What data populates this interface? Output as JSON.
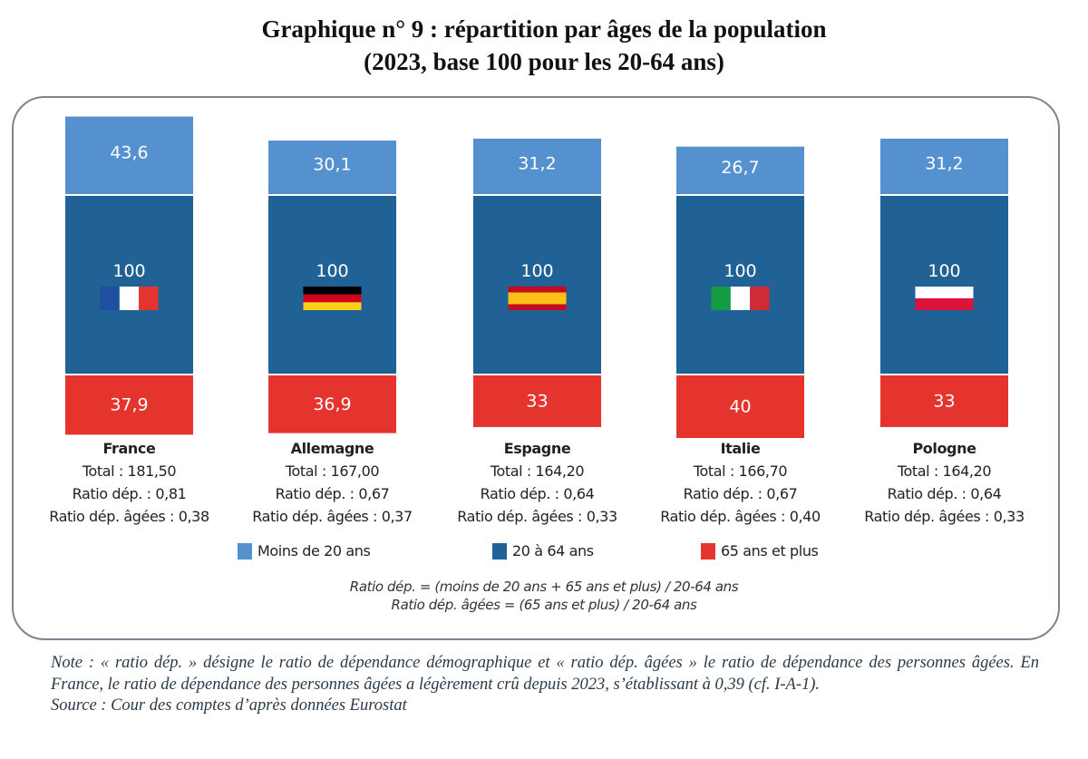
{
  "title": {
    "line1": "Graphique n° 9 : répartition par âges de la population",
    "line2": "(2023, base 100 pour les 20-64 ans)"
  },
  "colors": {
    "moins20": "#5591cf",
    "age20_64": "#216296",
    "plus65": "#e5332d",
    "frame": "#7d8391"
  },
  "chart_data": {
    "type": "bar",
    "stacked": true,
    "title": "Graphique n° 9 : répartition par âges de la population (2023, base 100 pour les 20-64 ans)",
    "xlabel": "",
    "ylabel": "",
    "categories": [
      "France",
      "Allemagne",
      "Espagne",
      "Italie",
      "Pologne"
    ],
    "series": [
      {
        "name": "65 ans et plus",
        "values": [
          37.9,
          36.9,
          33,
          40,
          33
        ],
        "labels": [
          "37,9",
          "36,9",
          "33",
          "40",
          "33"
        ]
      },
      {
        "name": "20 à 64 ans",
        "values": [
          100,
          100,
          100,
          100,
          100
        ],
        "labels": [
          "100",
          "100",
          "100",
          "100",
          "100"
        ]
      },
      {
        "name": "Moins de 20 ans",
        "values": [
          43.6,
          30.1,
          31.2,
          26.7,
          31.2
        ],
        "labels": [
          "43,6",
          "30,1",
          "31,2",
          "26,7",
          "31,2"
        ]
      }
    ],
    "legend": [
      "Moins de 20 ans",
      "20 à 64 ans",
      "65 ans et plus"
    ],
    "legend_position": "bottom",
    "grid": false,
    "axes_visible": false
  },
  "countries": [
    {
      "name": "France",
      "flag": "fr-flag",
      "total": "Total : 181,50",
      "ratio": "Ratio dép. : 0,81",
      "ratio_agees": "Ratio dép. âgées : 0,38"
    },
    {
      "name": "Allemagne",
      "flag": "de-flag",
      "total": "Total : 167,00",
      "ratio": "Ratio dép. : 0,67",
      "ratio_agees": "Ratio dép. âgées : 0,37"
    },
    {
      "name": "Espagne",
      "flag": "es-flag",
      "total": "Total : 164,20",
      "ratio": "Ratio dép. : 0,64",
      "ratio_agees": "Ratio dép. âgées : 0,33"
    },
    {
      "name": "Italie",
      "flag": "it-flag",
      "total": "Total : 166,70",
      "ratio": "Ratio dép. : 0,67",
      "ratio_agees": "Ratio dép. âgées : 0,40"
    },
    {
      "name": "Pologne",
      "flag": "pl-flag",
      "total": "Total : 164,20",
      "ratio": "Ratio dép. : 0,64",
      "ratio_agees": "Ratio dép. âgées : 0,33"
    }
  ],
  "legend": {
    "moins20": "Moins de 20 ans",
    "age20_64": "20 à 64 ans",
    "plus65": "65 ans et plus"
  },
  "formulas": {
    "ratio_dep": "Ratio dép. = (moins de 20 ans + 65 ans et plus) / 20-64 ans",
    "ratio_dep_agees": "Ratio dép. âgées = (65 ans et plus) / 20-64 ans"
  },
  "note": {
    "text": "Note : « ratio dép. » désigne le ratio de dépendance démographique et « ratio dép. âgées » le ratio de dépendance des personnes âgées. En France, le ratio de dépendance des personnes âgées a légèrement crû depuis 2023, s’établissant à 0,39 (cf. I-A-1).",
    "source": "Source : Cour des comptes d’après données Eurostat"
  }
}
